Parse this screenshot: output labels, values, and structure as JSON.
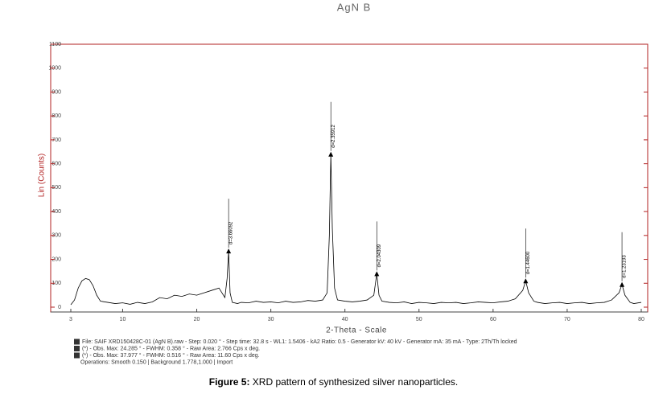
{
  "chart_data": {
    "type": "line",
    "title": "AgN B",
    "x_label": "2-Theta - Scale",
    "y_label": "Lin (Counts)",
    "color": "#000000",
    "axis_color": "#b22222",
    "xlim": [
      3,
      80
    ],
    "xticks": [
      3,
      10,
      20,
      30,
      40,
      50,
      60,
      70,
      80
    ],
    "ylim": [
      0,
      1100
    ],
    "yticks": [
      0,
      100,
      200,
      300,
      400,
      500,
      600,
      700,
      800,
      900,
      1000,
      1100
    ],
    "x": [
      3,
      3.5,
      4,
      4.5,
      5,
      5.5,
      6,
      6.5,
      7,
      8,
      9,
      10,
      11,
      12,
      13,
      14,
      15,
      16,
      17,
      18,
      19,
      20,
      21,
      22,
      23,
      23.8,
      24.1,
      24.3,
      24.5,
      24.8,
      25.5,
      26,
      27,
      28,
      29,
      30,
      31,
      32,
      33,
      34,
      35,
      36,
      37,
      37.6,
      37.9,
      38.1,
      38.3,
      38.6,
      39,
      40,
      41,
      42,
      43,
      43.9,
      44.3,
      44.6,
      45,
      46,
      47,
      48,
      49,
      50,
      51,
      52,
      53,
      54,
      55,
      56,
      57,
      58,
      59,
      60,
      61,
      62,
      63,
      64,
      64.4,
      64.8,
      65.5,
      66,
      67,
      68,
      69,
      70,
      71,
      72,
      73,
      74,
      75,
      76,
      77,
      77.4,
      77.8,
      78.5,
      79,
      80
    ],
    "values": [
      10,
      30,
      80,
      110,
      120,
      115,
      90,
      50,
      25,
      20,
      15,
      18,
      12,
      20,
      15,
      22,
      40,
      35,
      50,
      45,
      55,
      50,
      60,
      70,
      80,
      40,
      120,
      235,
      60,
      20,
      15,
      20,
      18,
      25,
      20,
      22,
      18,
      25,
      20,
      22,
      28,
      25,
      30,
      60,
      300,
      640,
      330,
      80,
      30,
      25,
      22,
      25,
      30,
      50,
      140,
      50,
      25,
      20,
      18,
      22,
      15,
      20,
      18,
      15,
      20,
      18,
      20,
      15,
      18,
      22,
      20,
      18,
      22,
      25,
      35,
      70,
      110,
      60,
      25,
      20,
      15,
      18,
      20,
      15,
      18,
      20,
      15,
      18,
      20,
      30,
      60,
      95,
      50,
      20,
      15,
      20
    ],
    "annotations": [
      {
        "text": "d=3.66092",
        "x": 24.3,
        "y": 235
      },
      {
        "text": "d=2.35912",
        "x": 38.1,
        "y": 640
      },
      {
        "text": "d=2.04309",
        "x": 44.3,
        "y": 140
      },
      {
        "text": "d=1.44600",
        "x": 64.4,
        "y": 110
      },
      {
        "text": "d=1.23193",
        "x": 77.4,
        "y": 95
      }
    ],
    "info_lines": [
      "File: SAIF XRD150428C-01 (AgN B).raw - Step: 0.020 ° - Step time: 32.8 s - WL1: 1.5406 - kA2 Ratio: 0.5 - Generator kV: 40 kV - Generator mA: 35 mA - Type: 2Th/Th locked",
      "(*) - Obs. Max: 24.285 ° - FWHM: 0.358 ° - Raw Area: 2.766 Cps x deg.",
      "(*) - Obs. Max: 37.977 ° - FWHM: 0.516 ° - Raw Area: 11.60 Cps x deg.",
      "Operations: Smooth 0.150 | Background 1.778,1.000 | Import"
    ]
  },
  "caption": {
    "label": "Figure 5:",
    "text": " XRD pattern of synthesized silver nanoparticles."
  }
}
